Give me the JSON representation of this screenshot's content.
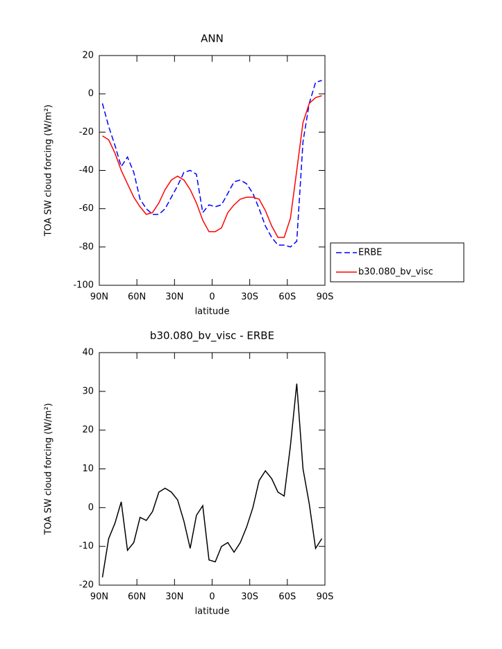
{
  "chart_data": [
    {
      "type": "line",
      "title": "ANN",
      "xlabel": "latitude",
      "ylabel": "TOA SW cloud forcing (W/m²)",
      "x": [
        87.5,
        82.5,
        77.5,
        72.5,
        67.5,
        62.5,
        57.5,
        52.5,
        47.5,
        42.5,
        37.5,
        32.5,
        27.5,
        22.5,
        17.5,
        12.5,
        7.5,
        2.5,
        -2.5,
        -7.5,
        -12.5,
        -17.5,
        -22.5,
        -27.5,
        -32.5,
        -37.5,
        -42.5,
        -47.5,
        -52.5,
        -57.5,
        -62.5,
        -67.5,
        -72.5,
        -77.5,
        -82.5,
        -87.5
      ],
      "series": [
        {
          "name": "ERBE",
          "color": "#0000ff",
          "linestyle": "dashed",
          "values": [
            -5,
            -17,
            -27,
            -38,
            -33,
            -41,
            -55,
            -60,
            -63,
            -63,
            -60,
            -54,
            -48,
            -41,
            -40,
            -42,
            -62,
            -58,
            -59,
            -58,
            -52,
            -46,
            -45,
            -47,
            -52,
            -60,
            -69,
            -75,
            -79,
            -79,
            -80,
            -77,
            -25,
            -5,
            6,
            7
          ]
        },
        {
          "name": "b30.080_bv_visc",
          "color": "#ff0000",
          "linestyle": "solid",
          "values": [
            -22,
            -24,
            -31,
            -40,
            -47,
            -54,
            -59,
            -63,
            -62,
            -57,
            -50,
            -45,
            -43,
            -45,
            -50,
            -57,
            -66,
            -72,
            -72,
            -70,
            -62,
            -58,
            -55,
            -54,
            -54,
            -55,
            -61,
            -69,
            -75,
            -75,
            -65,
            -40,
            -15,
            -5,
            -2,
            -1
          ]
        }
      ],
      "xlim": [
        90,
        -90
      ],
      "xticks": [
        {
          "value": 90,
          "label": "90N"
        },
        {
          "value": 60,
          "label": "60N"
        },
        {
          "value": 30,
          "label": "30N"
        },
        0,
        {
          "value": -30,
          "label": "30S"
        },
        {
          "value": -60,
          "label": "60S"
        },
        {
          "value": -90,
          "label": "90S"
        }
      ],
      "ylim": [
        -100,
        20
      ],
      "yticks": [
        -100,
        -80,
        -60,
        -40,
        -20,
        0,
        20
      ],
      "legend": "right"
    },
    {
      "type": "line",
      "title": "b30.080_bv_visc - ERBE",
      "xlabel": "latitude",
      "ylabel": "TOA SW cloud forcing (W/m²)",
      "x": [
        87.5,
        82.5,
        77.5,
        72.5,
        67.5,
        62.5,
        57.5,
        52.5,
        47.5,
        42.5,
        37.5,
        32.5,
        27.5,
        22.5,
        17.5,
        12.5,
        7.5,
        2.5,
        -2.5,
        -7.5,
        -12.5,
        -17.5,
        -22.5,
        -27.5,
        -32.5,
        -37.5,
        -42.5,
        -47.5,
        -52.5,
        -57.5,
        -62.5,
        -67.5,
        -72.5,
        -77.5,
        -82.5,
        -87.5
      ],
      "series": [
        {
          "color": "#000000",
          "linestyle": "solid",
          "values": [
            -18,
            -8,
            -4,
            1.5,
            -11,
            -9,
            -2.5,
            -3.3,
            -1,
            4,
            5,
            4,
            2,
            -3.5,
            -10.5,
            -2,
            0.5,
            -13.5,
            -14,
            -10,
            -9,
            -11.5,
            -9,
            -5,
            0,
            7,
            9.5,
            7.5,
            4,
            3,
            16,
            32,
            10,
            1,
            -10.5,
            -8
          ]
        }
      ],
      "xlim": [
        90,
        -90
      ],
      "xticks": [
        {
          "value": 90,
          "label": "90N"
        },
        {
          "value": 60,
          "label": "60N"
        },
        {
          "value": 30,
          "label": "30N"
        },
        0,
        {
          "value": -30,
          "label": "30S"
        },
        {
          "value": -60,
          "label": "60S"
        },
        {
          "value": -90,
          "label": "90S"
        }
      ],
      "ylim": [
        -20,
        40
      ],
      "yticks": [
        -20,
        -10,
        0,
        10,
        20,
        30,
        40
      ]
    }
  ]
}
